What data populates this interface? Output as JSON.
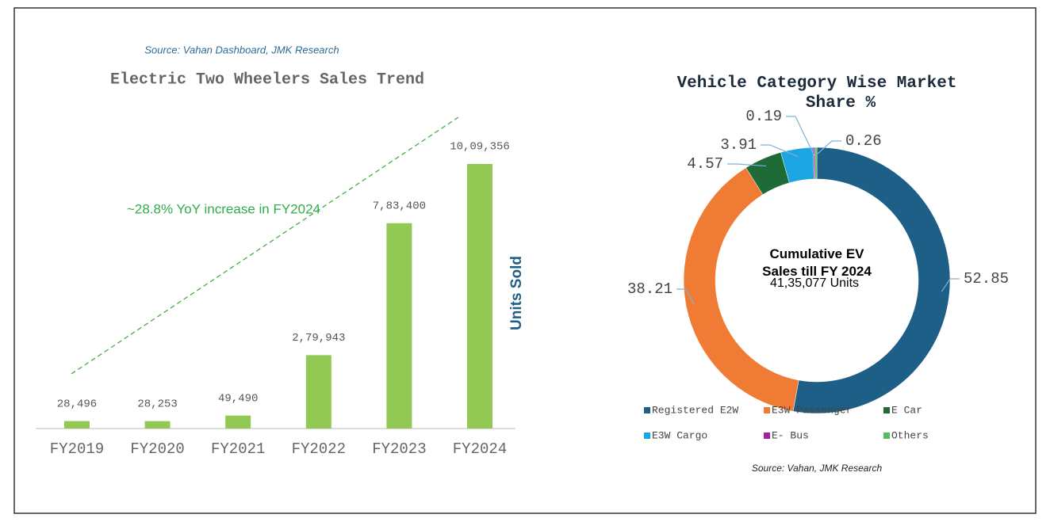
{
  "chart_data": [
    {
      "type": "bar",
      "title": "Electric Two Wheelers Sales Trend",
      "subtitle": "Source: Vahan Dashboard, JMK Research",
      "annotation": "~28.8% YoY increase in FY2024",
      "y_label": "Units Sold",
      "categories": [
        "FY2019",
        "FY2020",
        "FY2021",
        "FY2022",
        "FY2023",
        "FY2024"
      ],
      "values": [
        28496,
        28253,
        49490,
        279943,
        783400,
        1009356
      ],
      "value_labels": [
        "28,496",
        "28,253",
        "49,490",
        "2,79,943",
        "7,83,400",
        "10,09,356"
      ],
      "color": "#92c955"
    },
    {
      "type": "donut",
      "title": "Vehicle Category Wise Market Share %",
      "center_title": "Cumulative EV Sales till FY 2024",
      "center_value": "41,35,077 Units",
      "source": "Source:  Vahan, JMK Research",
      "categories": [
        "Registered E2W",
        "E3W Passenger",
        "E Car",
        "E3W Cargo",
        "E- Bus",
        "Others"
      ],
      "values": [
        52.85,
        38.21,
        4.57,
        3.91,
        0.19,
        0.26
      ],
      "colors": [
        "#1d5f86",
        "#f07b35",
        "#1e6b38",
        "#1ba6e2",
        "#a0229e",
        "#5cb85c"
      ],
      "legend": "bottom"
    }
  ]
}
